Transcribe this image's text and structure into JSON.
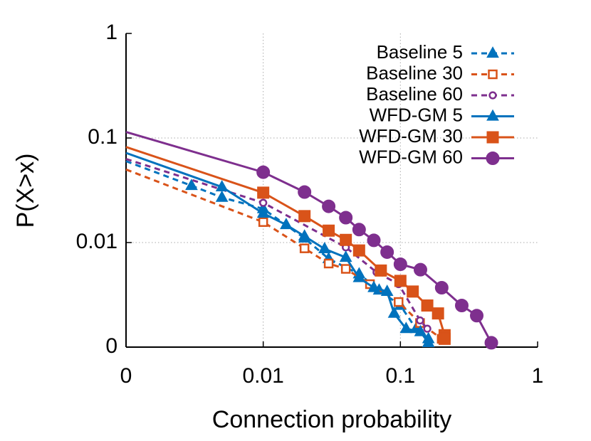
{
  "chart_data": {
    "type": "line",
    "x_label": "Connection probability",
    "y_label": "P(X>x)",
    "xlog": true,
    "ylog": true,
    "grid": true,
    "legend": "top-right",
    "xlim": [
      0.001,
      1
    ],
    "ylim": [
      0.001,
      1
    ],
    "xticks": [
      {
        "value": 0.001,
        "label": "0"
      },
      0.01,
      0.1,
      1
    ],
    "yticks": [
      {
        "value": 0.001,
        "label": "0"
      },
      0.01,
      0.1,
      1
    ],
    "series": [
      {
        "name": "Baseline 5",
        "color": "#0072bd",
        "dash": true,
        "marker": "triangle",
        "filled": true,
        "x": [
          0.001,
          0.003,
          0.005,
          0.01,
          0.02,
          0.03,
          0.05,
          0.07,
          0.1,
          0.13,
          0.16
        ],
        "values": [
          0.06,
          0.035,
          0.027,
          0.021,
          0.011,
          0.007,
          0.005,
          0.0035,
          0.0025,
          0.0015,
          0.0012
        ]
      },
      {
        "name": "Baseline 30",
        "color": "#d95319",
        "dash": true,
        "marker": "square",
        "filled": false,
        "x": [
          0.001,
          0.01,
          0.02,
          0.03,
          0.04,
          0.06,
          0.097,
          0.139,
          0.2
        ],
        "values": [
          0.05,
          0.0157,
          0.0088,
          0.0063,
          0.0056,
          0.004,
          0.0027,
          0.0017,
          0.0012
        ]
      },
      {
        "name": "Baseline 60",
        "color": "#7e2f8e",
        "dash": true,
        "marker": "circle",
        "filled": false,
        "x": [
          0.001,
          0.01,
          0.04,
          0.067,
          0.097,
          0.139,
          0.157
        ],
        "values": [
          0.063,
          0.024,
          0.009,
          0.0052,
          0.004,
          0.0018,
          0.0015
        ]
      },
      {
        "name": "WFD-GM 5",
        "color": "#0072bd",
        "dash": false,
        "marker": "triangle",
        "filled": true,
        "x": [
          0.001,
          0.005,
          0.01,
          0.0147,
          0.02,
          0.028,
          0.04,
          0.05,
          0.064,
          0.08,
          0.09,
          0.11,
          0.14,
          0.16
        ],
        "values": [
          0.072,
          0.034,
          0.019,
          0.0148,
          0.0115,
          0.0087,
          0.0072,
          0.0046,
          0.0037,
          0.0034,
          0.0021,
          0.0015,
          0.0014,
          0.0011
        ]
      },
      {
        "name": "WFD-GM 30",
        "color": "#d95319",
        "dash": false,
        "marker": "square",
        "filled": true,
        "x": [
          0.001,
          0.01,
          0.02,
          0.03,
          0.04,
          0.05,
          0.072,
          0.1,
          0.123,
          0.157,
          0.188,
          0.21,
          0.21
        ],
        "values": [
          0.082,
          0.03,
          0.0179,
          0.013,
          0.0106,
          0.0084,
          0.0054,
          0.0043,
          0.0034,
          0.0025,
          0.0021,
          0.0013,
          0.0012
        ]
      },
      {
        "name": "WFD-GM 60",
        "color": "#7e2f8e",
        "dash": false,
        "marker": "circle",
        "filled": true,
        "x": [
          0.001,
          0.01,
          0.02,
          0.03,
          0.04,
          0.05,
          0.064,
          0.08,
          0.1,
          0.14,
          0.2,
          0.28,
          0.36,
          0.46
        ],
        "values": [
          0.114,
          0.0471,
          0.0304,
          0.0222,
          0.0173,
          0.0133,
          0.0105,
          0.0081,
          0.0062,
          0.0055,
          0.0037,
          0.0025,
          0.002,
          0.0011
        ]
      }
    ]
  }
}
